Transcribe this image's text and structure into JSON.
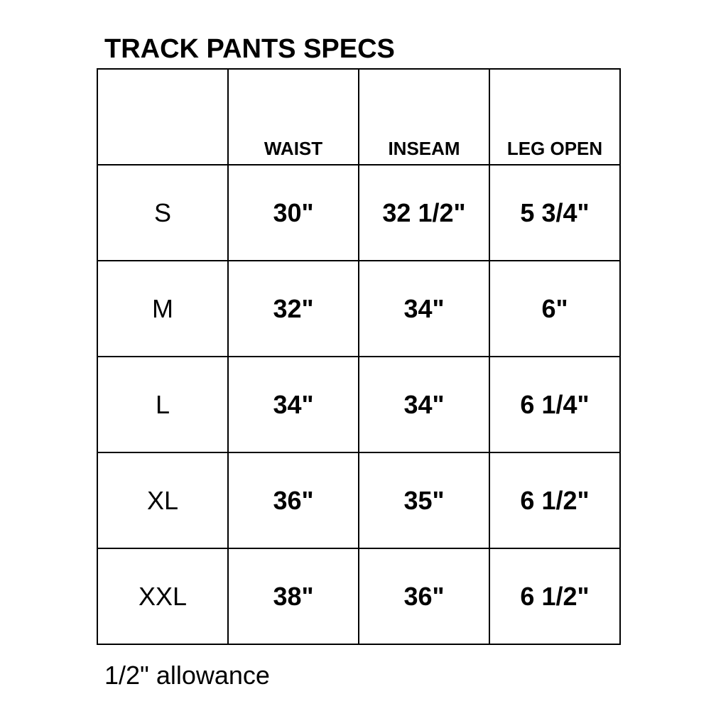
{
  "title": "TRACK PANTS SPECS",
  "table": {
    "headers": [
      "",
      "WAIST",
      "INSEAM",
      "LEG OPEN"
    ],
    "rows": [
      [
        "S",
        "30\"",
        "32 1/2\"",
        "5 3/4\""
      ],
      [
        "M",
        "32\"",
        "34\"",
        "6\""
      ],
      [
        "L",
        "34\"",
        "34\"",
        "6 1/4\""
      ],
      [
        "XL",
        "36\"",
        "35\"",
        "6 1/2\""
      ],
      [
        "XXL",
        "38\"",
        "36\"",
        "6 1/2\""
      ]
    ]
  },
  "note": "1/2\" allowance"
}
